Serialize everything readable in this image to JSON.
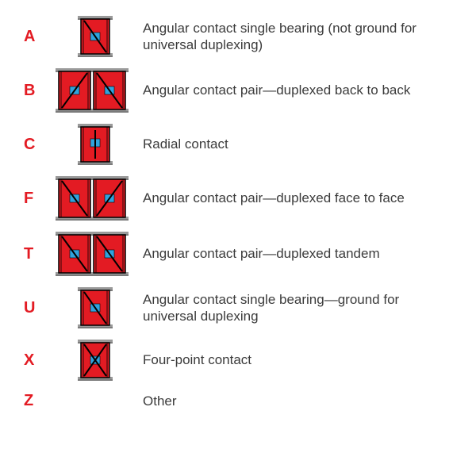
{
  "colors": {
    "code": "#e31b23",
    "bearing_fill": "#e31b23",
    "bearing_stroke": "#000000",
    "roller": "#2fa3dd",
    "base": "#9a9a9a",
    "base_dark": "#7b7b7b",
    "text": "#3b3b3b"
  },
  "font": {
    "code_size": 20,
    "desc_size": 17
  },
  "rows": [
    {
      "code": "A",
      "type": "angular-single",
      "desc": "Angular contact single bearing (not ground for universal duplexing)"
    },
    {
      "code": "B",
      "type": "pair-db",
      "desc": "Angular contact pair—duplexed back to back"
    },
    {
      "code": "C",
      "type": "radial",
      "desc": "Radial contact"
    },
    {
      "code": "F",
      "type": "pair-df",
      "desc": "Angular contact pair—duplexed face to face"
    },
    {
      "code": "T",
      "type": "pair-dt",
      "desc": "Angular contact pair—duplexed tandem"
    },
    {
      "code": "U",
      "type": "angular-single-u",
      "desc": "Angular contact single bearing—ground for universal duplexing"
    },
    {
      "code": "X",
      "type": "fourpoint",
      "desc": "Four-point contact"
    },
    {
      "code": "Z",
      "type": "none",
      "desc": "Other"
    }
  ],
  "geom": {
    "unit_w": 40,
    "unit_h": 50,
    "pair_w": 88,
    "pair_h": 54,
    "base_h": 4
  }
}
